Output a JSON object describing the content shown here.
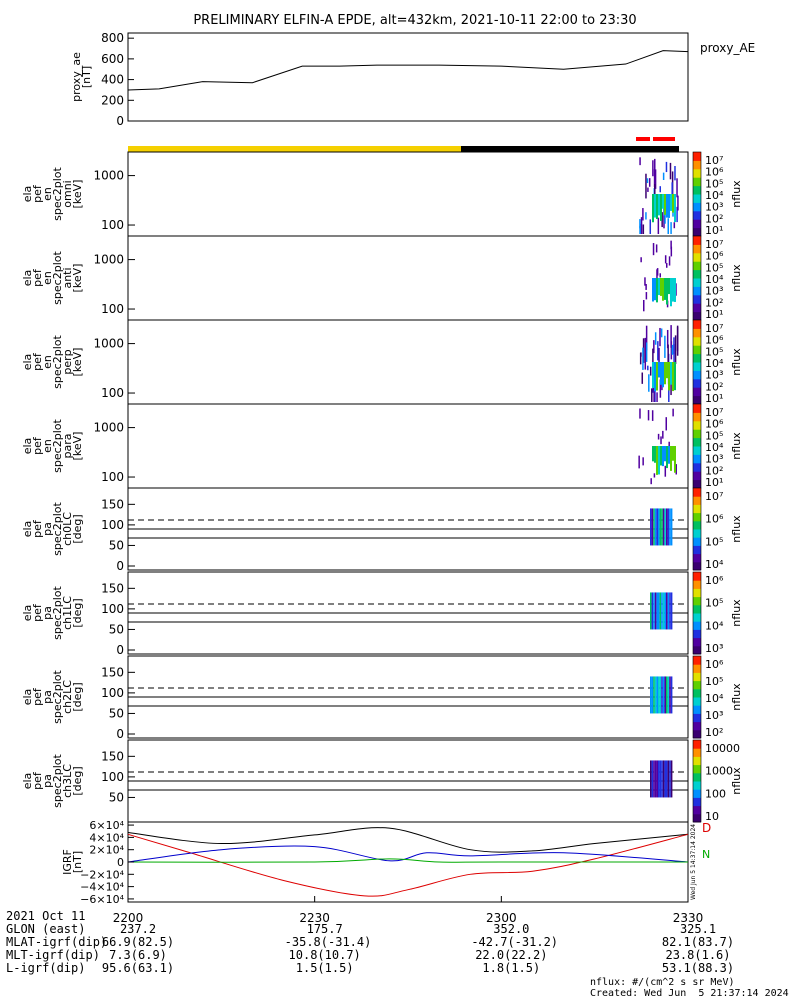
{
  "title": "PRELIMINARY ELFIN-A EPDE, alt=432km, 2021-10-11 22:00 to 23:30",
  "top_panel": {
    "ylabel": [
      "proxy_ae",
      "[nT]"
    ],
    "legend": "proxy_AE",
    "yticks": [
      "800",
      "600",
      "400",
      "200",
      "0"
    ]
  },
  "spec_panels": [
    {
      "ylabel": [
        "ela",
        "pef",
        "en",
        "spec2plot",
        "omni",
        "[keV]"
      ],
      "cbar_label": "nflux"
    },
    {
      "ylabel": [
        "ela",
        "pef",
        "en",
        "spec2plot",
        "anti",
        "[keV]"
      ],
      "cbar_label": "nflux"
    },
    {
      "ylabel": [
        "ela",
        "pef",
        "en",
        "spec2plot",
        "perp",
        "[keV]"
      ],
      "cbar_label": "nflux"
    },
    {
      "ylabel": [
        "ela",
        "pef",
        "en",
        "spec2plot",
        "para",
        "[keV]"
      ],
      "cbar_label": "nflux"
    }
  ],
  "pa_panels": [
    {
      "ylabel": [
        "ela",
        "pef",
        "pa",
        "spec2plot",
        "ch0LC",
        "[deg]"
      ],
      "cbar_label": "nflux"
    },
    {
      "ylabel": [
        "ela",
        "pef",
        "pa",
        "spec2plot",
        "ch1LC",
        "[deg]"
      ],
      "cbar_label": "nflux"
    },
    {
      "ylabel": [
        "ela",
        "pef",
        "pa",
        "spec2plot",
        "ch2LC",
        "[deg]"
      ],
      "cbar_label": "nflux"
    },
    {
      "ylabel": [
        "ela",
        "pef",
        "pa",
        "spec2plot",
        "ch3LC",
        "[deg]"
      ],
      "cbar_label": "nflux"
    }
  ],
  "energy_ticks": [
    "1000",
    "100"
  ],
  "pa_ticks": [
    "150",
    "100",
    "50",
    "0"
  ],
  "pa_ticks_last": [
    "150",
    "100",
    "50"
  ],
  "cbar_ticks_energy": [
    "10⁷",
    "10⁶",
    "10⁵",
    "10⁴",
    "10³",
    "10²",
    "10¹"
  ],
  "cbar_ticks_pa": [
    [
      "10⁷",
      "10⁶",
      "10⁵",
      "10⁴"
    ],
    [
      "10⁶",
      "10⁵",
      "10⁴",
      "10³"
    ],
    [
      "10⁶",
      "10⁵",
      "10⁴",
      "10³",
      "10²"
    ],
    [
      "10000",
      "1000",
      "100",
      "10"
    ]
  ],
  "igrf_panel": {
    "ylabel": [
      "IGRF",
      "[nT]"
    ],
    "yticks": [
      "6×10⁴",
      "4×10⁴",
      "2×10⁴",
      "0",
      "−2×10⁴",
      "−4×10⁴",
      "−6×10⁴"
    ],
    "legend": [
      "D",
      "N"
    ],
    "vertical_note": "Wed Jun  5 14:37:14 2024"
  },
  "x_ticks": [
    "2200",
    "2230",
    "2300",
    "2330"
  ],
  "orbit_table": [
    {
      "label": "2021 Oct 11",
      "values": [
        "",
        "",
        "",
        ""
      ]
    },
    {
      "label": "GLON (east)",
      "values": [
        "237.2",
        "175.7",
        "352.0",
        "325.1"
      ]
    },
    {
      "label": "MLAT-igrf(dip)",
      "values": [
        "66.9(82.5)",
        "-35.8(-31.4)",
        "-42.7(-31.2)",
        "82.1(83.7)"
      ]
    },
    {
      "label": "MLT-igrf(dip)",
      "values": [
        "7.3(6.9)",
        "10.8(10.7)",
        "22.0(22.2)",
        "23.8(1.6)"
      ]
    },
    {
      "label": "L-igrf(dip)",
      "values": [
        "95.6(63.1)",
        "1.5(1.5)",
        "1.8(1.5)",
        "53.1(88.3)"
      ]
    }
  ],
  "footer": {
    "units": "nflux: #/(cm^2 s sr MeV)",
    "created": "Created: Wed Jun  5 21:37:14 2024"
  },
  "colors": {
    "day_bar": "#f5d000",
    "night_bar": "#000000",
    "science_bar": "#ff0000",
    "igrf_black": "#000000",
    "igrf_red": "#dd0000",
    "igrf_blue": "#0000cc",
    "igrf_green": "#00aa00"
  },
  "chart_data": [
    {
      "type": "line",
      "title": "PRELIMINARY ELFIN-A EPDE, alt=432km, 2021-10-11 22:00 to 23:30",
      "ylabel": "proxy_ae [nT]",
      "ylim": [
        0,
        850
      ],
      "xlim": [
        0,
        90
      ],
      "series": [
        {
          "name": "proxy_AE",
          "x": [
            0,
            5,
            12,
            20,
            28,
            34,
            40,
            50,
            60,
            70,
            80,
            86,
            90
          ],
          "values": [
            300,
            310,
            380,
            370,
            530,
            530,
            540,
            540,
            530,
            500,
            550,
            680,
            670
          ]
        }
      ]
    },
    {
      "type": "line",
      "ylabel": "IGRF [nT]",
      "ylim": [
        -65000,
        65000
      ],
      "xlim": [
        0,
        90
      ],
      "series": [
        {
          "x": [
            0,
            15,
            30,
            42,
            55,
            65,
            75,
            90
          ],
          "values": [
            48000,
            30000,
            44000,
            55000,
            20000,
            18000,
            30000,
            45000
          ]
        },
        {
          "x": [
            0,
            10,
            25,
            38,
            45,
            55,
            65,
            75,
            90
          ],
          "values": [
            45000,
            15000,
            -30000,
            -55000,
            -45000,
            -20000,
            -15000,
            5000,
            45000
          ]
        },
        {
          "x": [
            0,
            15,
            30,
            42,
            48,
            55,
            70,
            90
          ],
          "values": [
            0,
            20000,
            25000,
            2000,
            15000,
            10000,
            15000,
            0
          ]
        },
        {
          "x": [
            0,
            30,
            42,
            50,
            60,
            90
          ],
          "values": [
            0,
            0,
            5000,
            0,
            0,
            0
          ]
        }
      ]
    }
  ]
}
